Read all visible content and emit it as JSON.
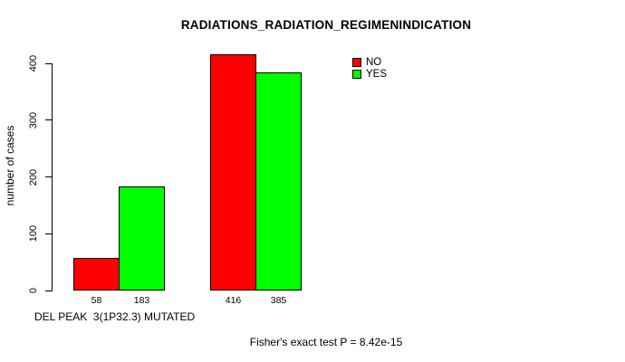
{
  "chart_data": {
    "type": "bar",
    "title": "RADIATIONS_RADIATION_REGIMENINDICATION",
    "ylabel": "number of cases",
    "xlabel": "DEL PEAK  3(1P32.3) MUTATED",
    "footnote": "Fisher's exact test P = 8.42e-15",
    "ylim": [
      0,
      420
    ],
    "yticks": [
      0,
      100,
      200,
      300,
      400
    ],
    "grid": false,
    "legend_position": "top-right",
    "categories": [
      "",
      ""
    ],
    "series": [
      {
        "name": "NO",
        "color": "#ff0000",
        "values": [
          58,
          416
        ]
      },
      {
        "name": "YES",
        "color": "#00ff00",
        "values": [
          183,
          385
        ]
      }
    ],
    "show_bar_value_labels": true
  },
  "style": {
    "background": "#ffffff",
    "axis_color": "#000000",
    "text_color": "#000000",
    "bar_border_color": "#000000"
  }
}
